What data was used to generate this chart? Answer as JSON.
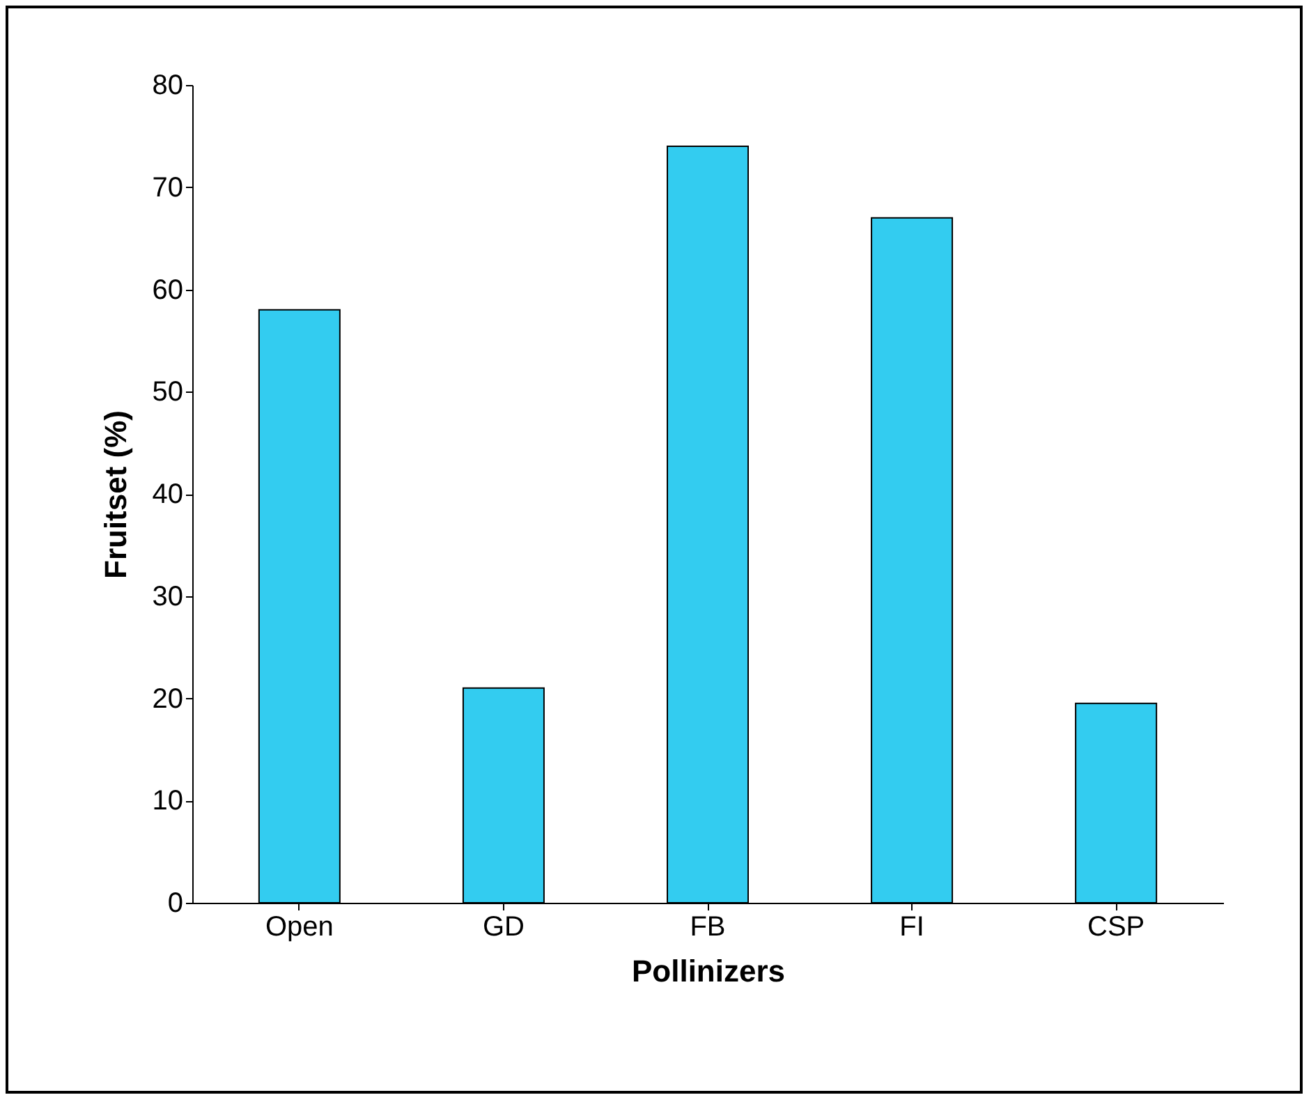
{
  "chart_data": {
    "type": "bar",
    "xlabel": "Pollinizers",
    "ylabel": "Fruitset (%)",
    "categories": [
      "Open",
      "GD",
      "FB",
      "FI",
      "CSP"
    ],
    "values": [
      58,
      21,
      74,
      67,
      19.5
    ],
    "color": "#33ccf0",
    "ylim": [
      0,
      80
    ],
    "yticks": [
      0,
      10,
      20,
      30,
      40,
      50,
      60,
      70,
      80
    ],
    "grid": false
  }
}
